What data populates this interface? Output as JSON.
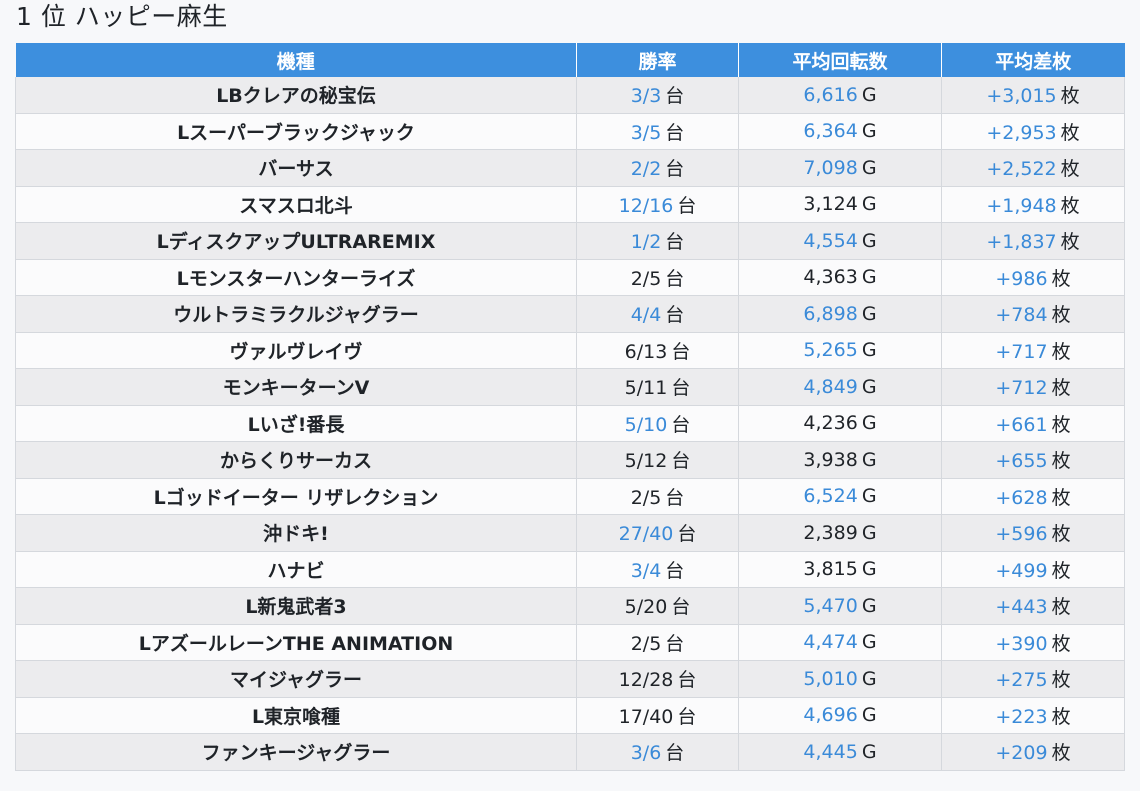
{
  "heading": "1 位 ハッピー麻生",
  "columns": [
    "機種",
    "勝率",
    "平均回転数",
    "平均差枚"
  ],
  "units": {
    "win": "台",
    "spins": "G",
    "diff": "枚"
  },
  "colors": {
    "header_bg": "#3d8fde",
    "link_blue": "#3a8ad8",
    "row_odd": "#ececee",
    "row_even": "#fbfbfc"
  },
  "rows": [
    {
      "machine": "LBクレアの秘宝伝",
      "win": "3/3",
      "win_hl": true,
      "spins": "6,616",
      "spins_hl": true,
      "diff": "+3,015"
    },
    {
      "machine": "Lスーパーブラックジャック",
      "win": "3/5",
      "win_hl": true,
      "spins": "6,364",
      "spins_hl": true,
      "diff": "+2,953"
    },
    {
      "machine": "バーサス",
      "win": "2/2",
      "win_hl": true,
      "spins": "7,098",
      "spins_hl": true,
      "diff": "+2,522"
    },
    {
      "machine": "スマスロ北斗",
      "win": "12/16",
      "win_hl": true,
      "spins": "3,124",
      "spins_hl": false,
      "diff": "+1,948"
    },
    {
      "machine": "LディスクアップULTRAREMIX",
      "win": "1/2",
      "win_hl": true,
      "spins": "4,554",
      "spins_hl": true,
      "diff": "+1,837"
    },
    {
      "machine": "Lモンスターハンターライズ",
      "win": "2/5",
      "win_hl": false,
      "spins": "4,363",
      "spins_hl": false,
      "diff": "+986"
    },
    {
      "machine": "ウルトラミラクルジャグラー",
      "win": "4/4",
      "win_hl": true,
      "spins": "6,898",
      "spins_hl": true,
      "diff": "+784"
    },
    {
      "machine": "ヴァルヴレイヴ",
      "win": "6/13",
      "win_hl": false,
      "spins": "5,265",
      "spins_hl": true,
      "diff": "+717"
    },
    {
      "machine": "モンキーターンV",
      "win": "5/11",
      "win_hl": false,
      "spins": "4,849",
      "spins_hl": true,
      "diff": "+712"
    },
    {
      "machine": "Lいざ!番長",
      "win": "5/10",
      "win_hl": true,
      "spins": "4,236",
      "spins_hl": false,
      "diff": "+661"
    },
    {
      "machine": "からくりサーカス",
      "win": "5/12",
      "win_hl": false,
      "spins": "3,938",
      "spins_hl": false,
      "diff": "+655"
    },
    {
      "machine": "Lゴッドイーター リザレクション",
      "win": "2/5",
      "win_hl": false,
      "spins": "6,524",
      "spins_hl": true,
      "diff": "+628"
    },
    {
      "machine": "沖ドキ!",
      "win": "27/40",
      "win_hl": true,
      "spins": "2,389",
      "spins_hl": false,
      "diff": "+596"
    },
    {
      "machine": "ハナビ",
      "win": "3/4",
      "win_hl": true,
      "spins": "3,815",
      "spins_hl": false,
      "diff": "+499"
    },
    {
      "machine": "L新鬼武者3",
      "win": "5/20",
      "win_hl": false,
      "spins": "5,470",
      "spins_hl": true,
      "diff": "+443"
    },
    {
      "machine": "LアズールレーンTHE ANIMATION",
      "win": "2/5",
      "win_hl": false,
      "spins": "4,474",
      "spins_hl": true,
      "diff": "+390"
    },
    {
      "machine": "マイジャグラー",
      "win": "12/28",
      "win_hl": false,
      "spins": "5,010",
      "spins_hl": true,
      "diff": "+275"
    },
    {
      "machine": "L東京喰種",
      "win": "17/40",
      "win_hl": false,
      "spins": "4,696",
      "spins_hl": true,
      "diff": "+223"
    },
    {
      "machine": "ファンキージャグラー",
      "win": "3/6",
      "win_hl": true,
      "spins": "4,445",
      "spins_hl": true,
      "diff": "+209"
    }
  ]
}
